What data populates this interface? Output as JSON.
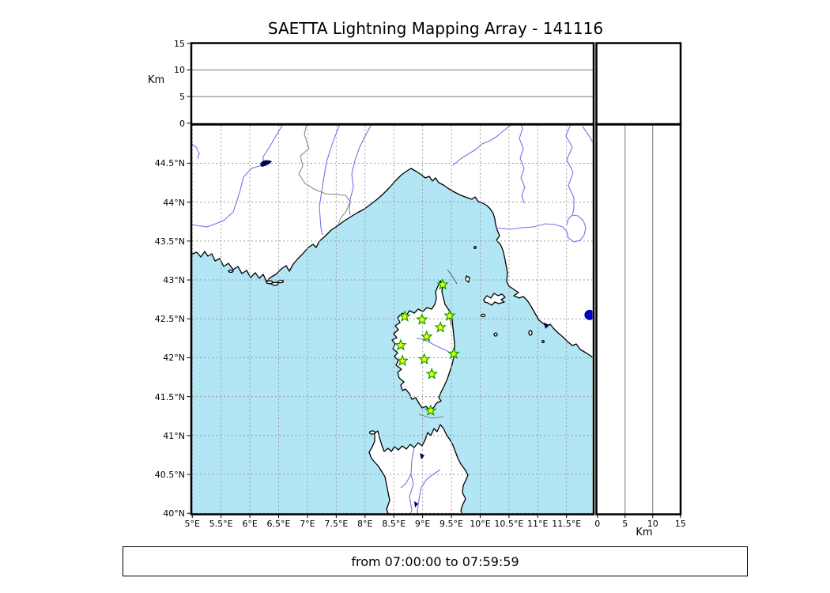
{
  "title": "SAETTA Lightning Mapping Array - 141116",
  "caption": "from 07:00:00 to 07:59:59",
  "alt_axis": {
    "label": "Km",
    "ticks": [
      {
        "value": 0,
        "label": "0"
      },
      {
        "value": 5,
        "label": "5"
      },
      {
        "value": 10,
        "label": "10"
      },
      {
        "value": 15,
        "label": "15"
      }
    ]
  },
  "km_axis": {
    "label": "Km",
    "ticks": [
      {
        "value": 0,
        "label": "0"
      },
      {
        "value": 5,
        "label": "5"
      },
      {
        "value": 10,
        "label": "10"
      },
      {
        "value": 15,
        "label": "15"
      }
    ]
  },
  "map": {
    "lon_ticks": [
      {
        "value": 5,
        "label": "5°E"
      },
      {
        "value": 5.5,
        "label": "5.5°E"
      },
      {
        "value": 6,
        "label": "6°E"
      },
      {
        "value": 6.5,
        "label": "6.5°E"
      },
      {
        "value": 7,
        "label": "7°E"
      },
      {
        "value": 7.5,
        "label": "7.5°E"
      },
      {
        "value": 8,
        "label": "8°E"
      },
      {
        "value": 8.5,
        "label": "8.5°E"
      },
      {
        "value": 9,
        "label": "9°E"
      },
      {
        "value": 9.5,
        "label": "9.5°E"
      },
      {
        "value": 10,
        "label": "10°E"
      },
      {
        "value": 10.5,
        "label": "10.5°E"
      },
      {
        "value": 11,
        "label": "11°E"
      },
      {
        "value": 11.5,
        "label": "11.5°E"
      }
    ],
    "lat_ticks": [
      {
        "value": 40,
        "label": "40°N"
      },
      {
        "value": 40.5,
        "label": "40.5°N"
      },
      {
        "value": 41,
        "label": "41°N"
      },
      {
        "value": 41.5,
        "label": "41.5°N"
      },
      {
        "value": 42,
        "label": "42°N"
      },
      {
        "value": 42.5,
        "label": "42.5°N"
      },
      {
        "value": 43,
        "label": "43°N"
      },
      {
        "value": 43.5,
        "label": "43.5°N"
      },
      {
        "value": 44,
        "label": "44°N"
      },
      {
        "value": 44.5,
        "label": "44.5°N"
      }
    ],
    "stations": [
      {
        "lon": 9.35,
        "lat": 42.94
      },
      {
        "lon": 8.69,
        "lat": 42.53
      },
      {
        "lon": 8.99,
        "lat": 42.49
      },
      {
        "lon": 9.47,
        "lat": 42.54
      },
      {
        "lon": 9.31,
        "lat": 42.39
      },
      {
        "lon": 9.07,
        "lat": 42.27
      },
      {
        "lon": 8.62,
        "lat": 42.16
      },
      {
        "lon": 9.54,
        "lat": 42.05
      },
      {
        "lon": 8.65,
        "lat": 41.96
      },
      {
        "lon": 9.03,
        "lat": 41.98
      },
      {
        "lon": 9.16,
        "lat": 41.79
      },
      {
        "lon": 9.14,
        "lat": 41.32
      }
    ],
    "highlight_point": {
      "lon": 11.9,
      "lat": 42.55
    }
  },
  "colors": {
    "sea": "#b3e6f5",
    "land": "#ffffff",
    "coastline": "#000000",
    "river": "#7373e8",
    "border_line": "#808080",
    "grid": "#999999",
    "panel_grid": "#777777",
    "station_fill": "#ffff00",
    "station_edge": "#00a000",
    "point_fill": "#0000bb",
    "lake": "#000050"
  }
}
